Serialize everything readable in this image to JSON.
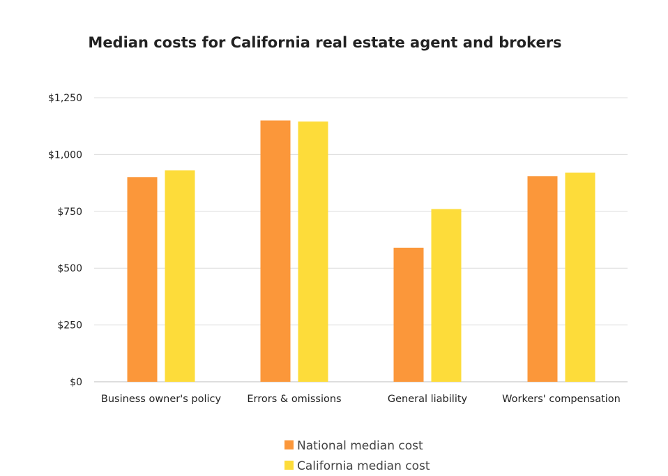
{
  "chart_data": {
    "type": "bar",
    "title": "Median costs for California real estate agent and brokers",
    "xlabel": "",
    "ylabel": "",
    "ylim": [
      0,
      1250
    ],
    "yticks": [
      0,
      250,
      500,
      750,
      1000,
      1250
    ],
    "ytick_labels": [
      "$0",
      "$250",
      "$500",
      "$750",
      "$1,000",
      "$1,250"
    ],
    "categories": [
      "Business owner's policy",
      "Errors & omissions",
      "General liability",
      "Workers' compensation"
    ],
    "series": [
      {
        "name": "National median cost",
        "color": "#fb973a",
        "values": [
          900,
          1150,
          590,
          905
        ]
      },
      {
        "name": "California median cost",
        "color": "#fddc3a",
        "values": [
          930,
          1145,
          760,
          920
        ]
      }
    ],
    "grid": true,
    "legend_position": "bottom"
  }
}
